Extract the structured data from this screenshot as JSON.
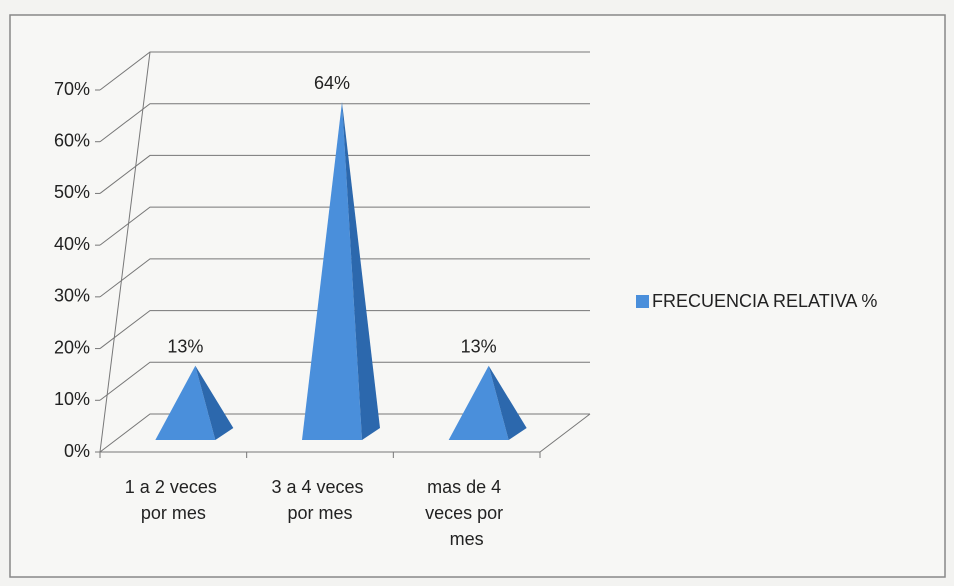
{
  "chart_data": {
    "type": "pyramid3d",
    "categories": [
      "1 a 2 veces por mes",
      "3 a 4 veces por mes",
      "mas de 4 veces por mes"
    ],
    "series": [
      {
        "name": "FRECUENCIA RELATIVA %",
        "color": "#4a8fdb",
        "values": [
          13,
          64,
          13
        ],
        "value_labels": [
          "13%",
          "64%",
          "13%"
        ]
      }
    ],
    "ylim": [
      0,
      70
    ],
    "yticks": [
      {
        "value": 0,
        "label": "0%"
      },
      {
        "value": 10,
        "label": "10%"
      },
      {
        "value": 20,
        "label": "20%"
      },
      {
        "value": 30,
        "label": "30%"
      },
      {
        "value": 40,
        "label": "40%"
      },
      {
        "value": 50,
        "label": "50%"
      },
      {
        "value": 60,
        "label": "60%"
      },
      {
        "value": 70,
        "label": "70%"
      }
    ],
    "grid": true,
    "legend": "right"
  }
}
